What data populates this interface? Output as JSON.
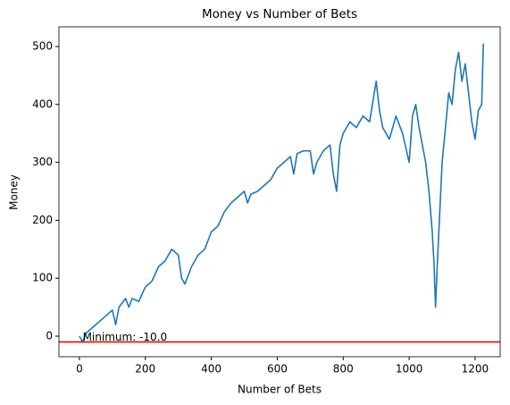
{
  "chart_data": {
    "type": "line",
    "title": "Money vs Number of Bets",
    "x_label": "Number of Bets",
    "y_label": "Money",
    "x": [
      0,
      10,
      20,
      40,
      60,
      80,
      100,
      110,
      120,
      140,
      150,
      160,
      180,
      200,
      220,
      240,
      260,
      280,
      300,
      310,
      320,
      340,
      360,
      380,
      400,
      420,
      440,
      460,
      480,
      500,
      510,
      520,
      540,
      560,
      580,
      600,
      620,
      640,
      650,
      660,
      680,
      700,
      710,
      720,
      740,
      760,
      770,
      780,
      790,
      800,
      820,
      840,
      860,
      880,
      900,
      910,
      920,
      940,
      960,
      980,
      1000,
      1010,
      1020,
      1030,
      1040,
      1050,
      1060,
      1070,
      1075,
      1080,
      1085,
      1090,
      1100,
      1110,
      1120,
      1130,
      1140,
      1150,
      1160,
      1170,
      1180,
      1190,
      1200,
      1210,
      1220,
      1225
    ],
    "values": [
      0,
      -10,
      5,
      15,
      25,
      35,
      45,
      20,
      50,
      65,
      50,
      65,
      60,
      85,
      95,
      120,
      130,
      150,
      140,
      100,
      90,
      120,
      140,
      150,
      180,
      190,
      215,
      230,
      240,
      250,
      230,
      245,
      250,
      260,
      270,
      290,
      300,
      310,
      280,
      315,
      320,
      320,
      280,
      300,
      320,
      330,
      280,
      250,
      330,
      350,
      370,
      360,
      380,
      370,
      440,
      390,
      360,
      340,
      380,
      350,
      300,
      380,
      400,
      360,
      330,
      300,
      250,
      180,
      130,
      50,
      120,
      180,
      300,
      360,
      420,
      400,
      460,
      490,
      440,
      470,
      420,
      370,
      340,
      390,
      400,
      505
    ],
    "color": "#1f77b4",
    "hline": {
      "value": -10,
      "color": "#ff0000"
    },
    "annotation": "Minimum: -10.0",
    "xlim": [
      -62,
      1276
    ],
    "ylim": [
      -35.5,
      534
    ],
    "xticks": [
      0,
      200,
      400,
      600,
      800,
      1000,
      1200
    ],
    "yticks": [
      0,
      100,
      200,
      300,
      400,
      500
    ]
  }
}
